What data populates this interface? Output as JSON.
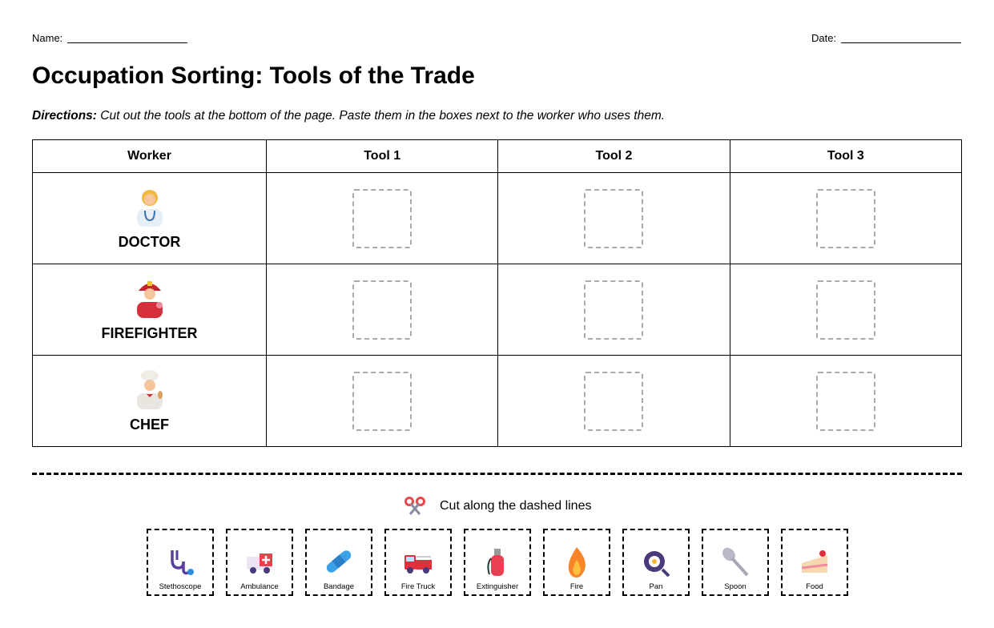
{
  "header": {
    "name_label": "Name:",
    "date_label": "Date:"
  },
  "title": "Occupation Sorting: Tools of the Trade",
  "directions": {
    "label": "Directions:",
    "text": " Cut out the tools at the bottom of the page. Paste them in the boxes next to the worker who uses them."
  },
  "table": {
    "headers": [
      "Worker",
      "Tool 1",
      "Tool 2",
      "Tool 3"
    ],
    "workers": [
      {
        "name": "DOCTOR",
        "icon": "doctor-icon"
      },
      {
        "name": "FIREFIGHTER",
        "icon": "firefighter-icon"
      },
      {
        "name": "CHEF",
        "icon": "chef-icon"
      }
    ]
  },
  "cut_note": "Cut along the dashed lines",
  "tools": [
    {
      "label": "Stethoscope",
      "icon": "stethoscope-icon"
    },
    {
      "label": "Ambulance",
      "icon": "ambulance-icon"
    },
    {
      "label": "Bandage",
      "icon": "bandage-icon"
    },
    {
      "label": "Fire Truck",
      "icon": "fire-truck-icon"
    },
    {
      "label": "Extinguisher",
      "icon": "extinguisher-icon"
    },
    {
      "label": "Fire",
      "icon": "fire-icon"
    },
    {
      "label": "Pan",
      "icon": "pan-icon"
    },
    {
      "label": "Spoon",
      "icon": "spoon-icon"
    },
    {
      "label": "Food",
      "icon": "cake-icon"
    }
  ]
}
